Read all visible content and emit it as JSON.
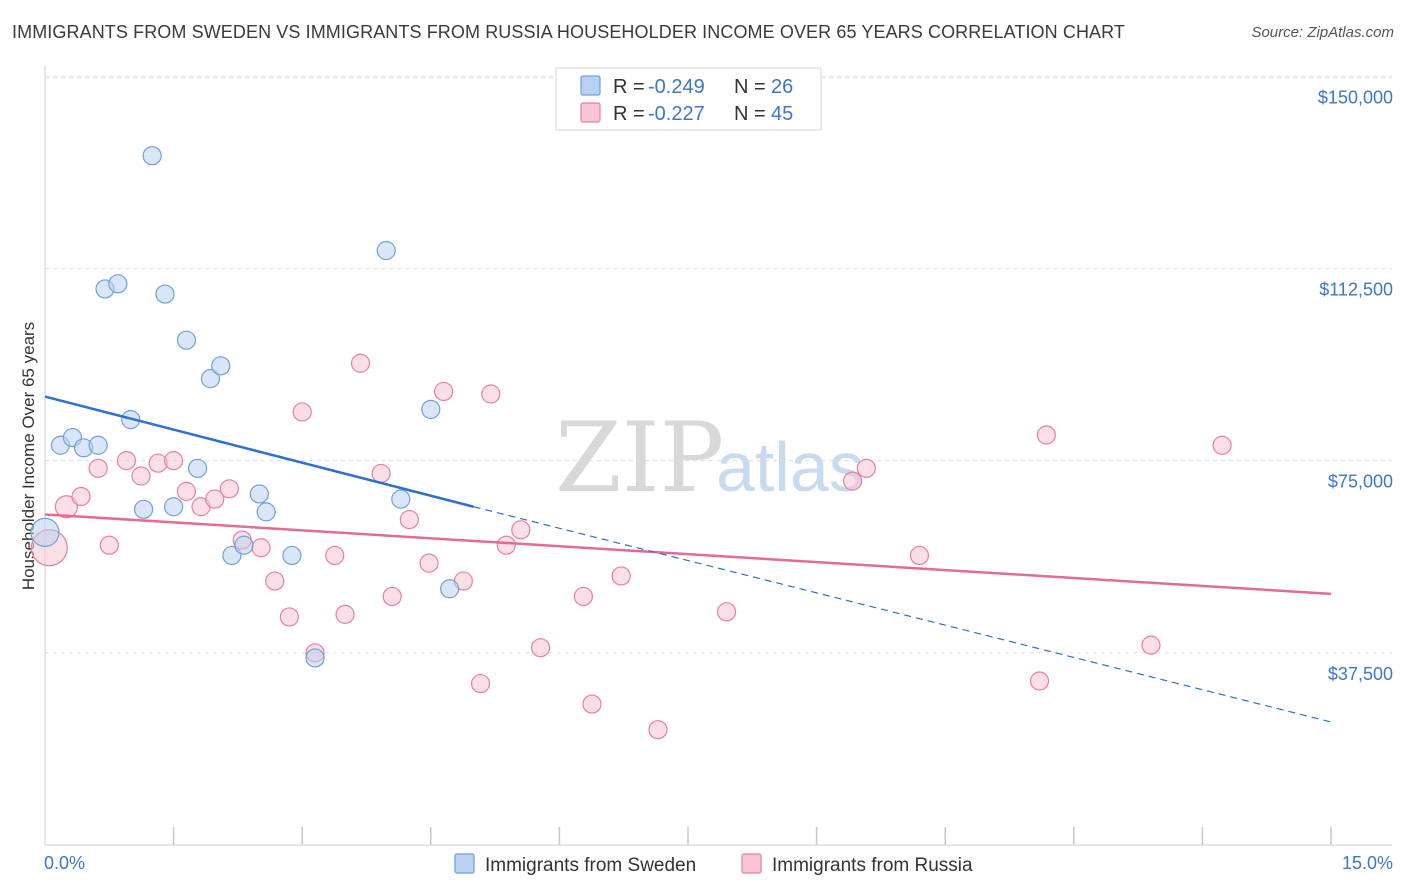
{
  "title": "IMMIGRANTS FROM SWEDEN VS IMMIGRANTS FROM RUSSIA HOUSEHOLDER INCOME OVER 65 YEARS CORRELATION CHART",
  "source": "Source: ZipAtlas.com",
  "watermark": {
    "zip": "ZIP",
    "atlas": "atlas"
  },
  "colors": {
    "sweden": "#6f9fdd",
    "sweden_fill": "#b9d1f1",
    "russia": "#e97ea0",
    "russia_fill": "#f8c5d4",
    "sweden_line": "#2f6fce",
    "russia_line": "#e36a93"
  },
  "legend": {
    "rows": [
      {
        "r_label": "R =",
        "r_value": "-0.249",
        "n_label": "N =",
        "n_value": "26"
      },
      {
        "r_label": "R =",
        "r_value": "-0.227",
        "n_label": "N =",
        "n_value": "45"
      }
    ]
  },
  "chart_data": {
    "type": "scatter",
    "xlabel": "",
    "ylabel": "Householder Income Over 65 years",
    "xlim": [
      0,
      15
    ],
    "ylim": [
      0,
      152000
    ],
    "x_tick_labels": [
      "0.0%",
      "15.0%"
    ],
    "y_ticks": [
      37500,
      75000,
      112500,
      150000
    ],
    "y_tick_labels": [
      "$37,500",
      "$75,000",
      "$112,500",
      "$150,000"
    ],
    "series": [
      {
        "name": "Immigrants from Sweden",
        "points": [
          [
            0.0,
            61000,
            14
          ],
          [
            0.18,
            78000,
            9
          ],
          [
            0.32,
            79500,
            9
          ],
          [
            0.45,
            77500,
            9
          ],
          [
            0.62,
            78000,
            9
          ],
          [
            0.7,
            108500,
            9
          ],
          [
            0.85,
            109500,
            9
          ],
          [
            1.0,
            83000,
            9
          ],
          [
            1.15,
            65500,
            9
          ],
          [
            1.25,
            134500,
            9
          ],
          [
            1.4,
            107500,
            9
          ],
          [
            1.5,
            66000,
            9
          ],
          [
            1.65,
            98500,
            9
          ],
          [
            1.78,
            73500,
            9
          ],
          [
            1.93,
            91000,
            9
          ],
          [
            2.05,
            93500,
            9
          ],
          [
            2.18,
            56500,
            9
          ],
          [
            2.32,
            58500,
            9
          ],
          [
            2.5,
            68500,
            9
          ],
          [
            2.58,
            65000,
            9
          ],
          [
            2.88,
            56500,
            9
          ],
          [
            3.15,
            36500,
            9
          ],
          [
            3.98,
            116000,
            9
          ],
          [
            4.15,
            67500,
            9
          ],
          [
            4.5,
            85000,
            9
          ],
          [
            4.72,
            50000,
            9
          ]
        ]
      },
      {
        "name": "Immigrants from Russia",
        "points": [
          [
            0.05,
            58000,
            18
          ],
          [
            0.25,
            66000,
            11
          ],
          [
            0.42,
            68000,
            9
          ],
          [
            0.62,
            73500,
            9
          ],
          [
            0.75,
            58500,
            9
          ],
          [
            0.95,
            75000,
            9
          ],
          [
            1.12,
            72000,
            9
          ],
          [
            1.32,
            74500,
            9
          ],
          [
            1.5,
            75000,
            9
          ],
          [
            1.65,
            69000,
            9
          ],
          [
            1.82,
            66000,
            9
          ],
          [
            1.98,
            67500,
            9
          ],
          [
            2.15,
            69500,
            9
          ],
          [
            2.3,
            59500,
            9
          ],
          [
            2.52,
            58000,
            9
          ],
          [
            2.68,
            51500,
            9
          ],
          [
            2.85,
            44500,
            9
          ],
          [
            3.0,
            84500,
            9
          ],
          [
            3.15,
            37500,
            9
          ],
          [
            3.38,
            56500,
            9
          ],
          [
            3.5,
            45000,
            9
          ],
          [
            3.68,
            94000,
            9
          ],
          [
            3.92,
            72500,
            9
          ],
          [
            4.05,
            48500,
            9
          ],
          [
            4.25,
            63500,
            9
          ],
          [
            4.48,
            55000,
            9
          ],
          [
            4.65,
            88500,
            9
          ],
          [
            4.88,
            51500,
            9
          ],
          [
            5.08,
            31500,
            9
          ],
          [
            5.2,
            88000,
            9
          ],
          [
            5.38,
            58500,
            9
          ],
          [
            5.55,
            61500,
            9
          ],
          [
            5.78,
            38500,
            9
          ],
          [
            6.28,
            48500,
            9
          ],
          [
            6.38,
            27500,
            9
          ],
          [
            6.72,
            52500,
            9
          ],
          [
            7.15,
            22500,
            9
          ],
          [
            7.95,
            45500,
            9
          ],
          [
            9.42,
            71000,
            9
          ],
          [
            9.58,
            73500,
            9
          ],
          [
            10.2,
            56500,
            9
          ],
          [
            11.6,
            32000,
            9
          ],
          [
            11.68,
            80000,
            9
          ],
          [
            12.9,
            39000,
            9
          ],
          [
            13.73,
            78000,
            9
          ]
        ]
      }
    ],
    "trend_lines": [
      {
        "series": "Immigrants from Sweden",
        "x_start": 0.0,
        "y_start": 87500,
        "x_solid_end": 5.0,
        "y_solid_end": 66000,
        "x_dash_end": 15.0,
        "y_dash_end": 24000
      },
      {
        "series": "Immigrants from Russia",
        "x_start": 0.0,
        "y_start": 64500,
        "x_end": 15.0,
        "y_end": 49000
      }
    ]
  }
}
